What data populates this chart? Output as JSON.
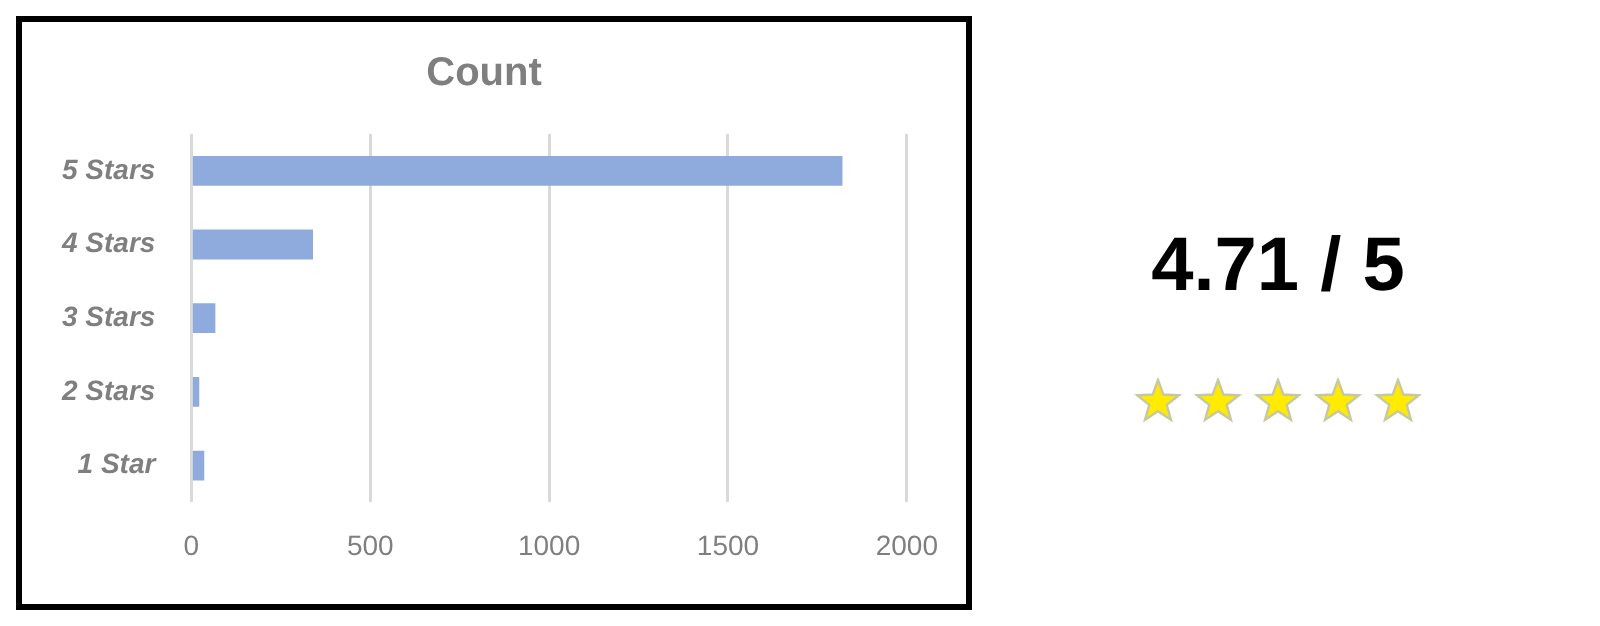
{
  "chart_data": {
    "type": "bar",
    "orientation": "horizontal",
    "title": "Count",
    "categories": [
      "5 Stars",
      "4 Stars",
      "3 Stars",
      "2 Stars",
      "1 Star"
    ],
    "values": [
      1820,
      340,
      67,
      22,
      36
    ],
    "color": "#8faadc",
    "xlim": [
      0,
      2000
    ],
    "xticks": [
      0,
      500,
      1000,
      1500,
      2000
    ],
    "grid": "x",
    "legend": false,
    "annotations": [
      "4.71 / 5"
    ]
  }
}
